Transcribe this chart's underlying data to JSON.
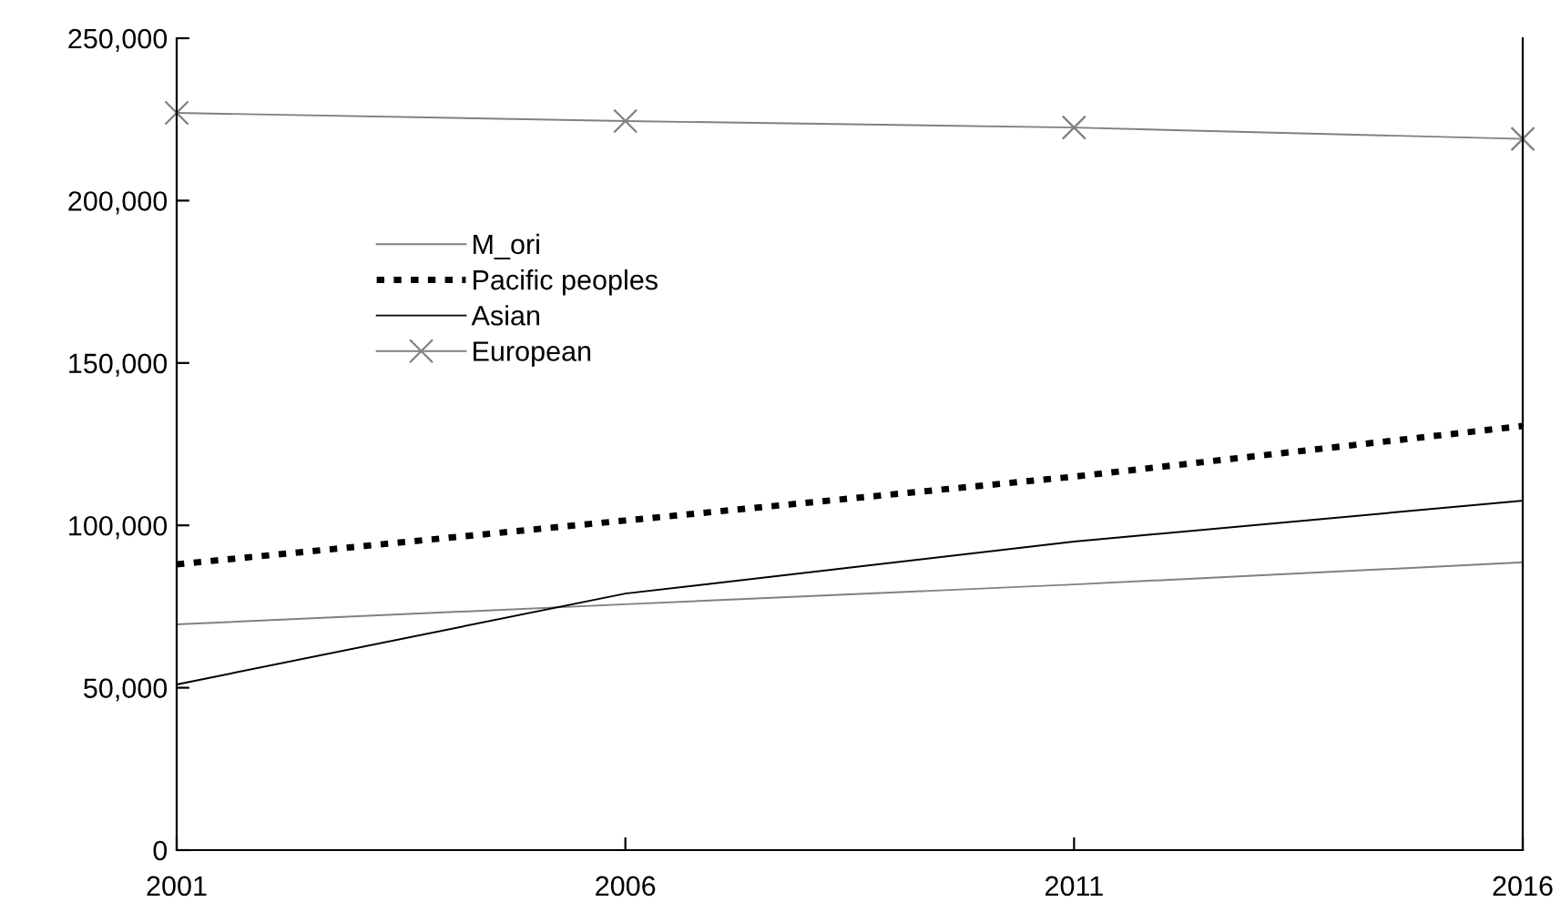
{
  "chart_data": {
    "type": "line",
    "x": [
      2001,
      2006,
      2011,
      2016
    ],
    "xlim": [
      2001,
      2016
    ],
    "xticks": [
      2001,
      2006,
      2011,
      2016
    ],
    "ylim": [
      0,
      250000
    ],
    "yticks": [
      {
        "value": 0,
        "label": "0"
      },
      {
        "value": 50000,
        "label": "50,000"
      },
      {
        "value": 100000,
        "label": "100,000"
      },
      {
        "value": 150000,
        "label": "150,000"
      },
      {
        "value": 200000,
        "label": "200,000"
      },
      {
        "value": 250000,
        "label": "250,000"
      }
    ],
    "grid": false,
    "legend": "top left",
    "series": [
      {
        "name": "M_ori",
        "color": "#808080",
        "line_style": "solid",
        "marker": "none",
        "values": [
          69500,
          75700,
          81800,
          88600
        ]
      },
      {
        "name": "Pacific peoples",
        "color": "#000000",
        "line_style": "dotted",
        "marker": "none",
        "values": [
          88000,
          101500,
          115000,
          130600
        ]
      },
      {
        "name": "Asian",
        "color": "#000000",
        "line_style": "solid",
        "marker": "none",
        "values": [
          51000,
          79000,
          95000,
          107600
        ]
      },
      {
        "name": "European",
        "color": "#808080",
        "line_style": "solid",
        "marker": "cross",
        "values": [
          227000,
          224500,
          222500,
          219000
        ]
      }
    ]
  }
}
